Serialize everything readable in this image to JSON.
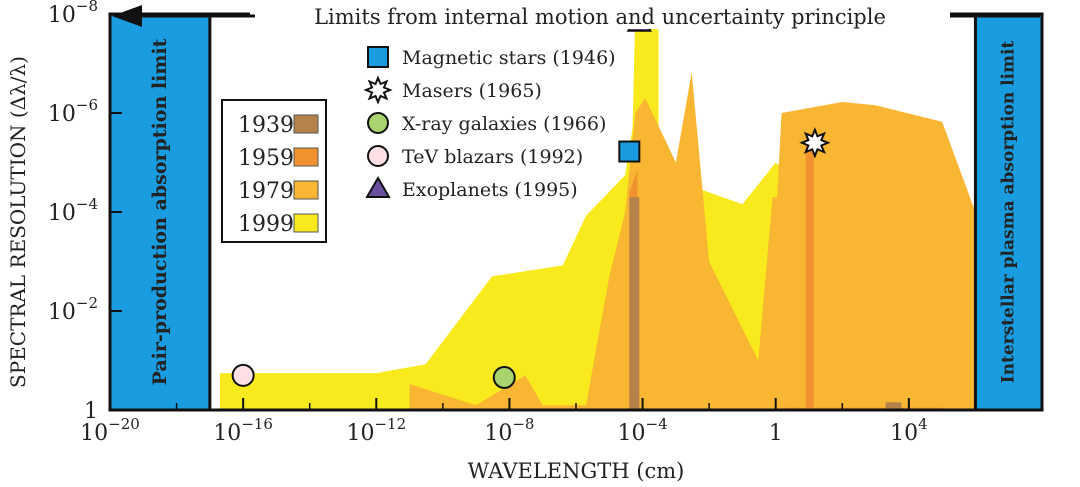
{
  "chart_data": {
    "type": "area",
    "title": "Limits from internal motion and uncertainty principle",
    "xlabel": "WAVELENGTH (cm)",
    "ylabel": "SPECTRAL RESOLUTION (Δλ/λ)",
    "x_scale": "log",
    "y_scale": "log",
    "xlim": [
      "1e-20",
      "1e8"
    ],
    "ylim": [
      "1",
      "1e-8"
    ],
    "x_ticks": [
      {
        "v": "1e-20",
        "base": "10",
        "exp": "−20"
      },
      {
        "v": "1e-16",
        "base": "10",
        "exp": "−16"
      },
      {
        "v": "1e-12",
        "base": "10",
        "exp": "−12"
      },
      {
        "v": "1e-8",
        "base": "10",
        "exp": "−8"
      },
      {
        "v": "1e-4",
        "base": "10",
        "exp": "−4"
      },
      {
        "v": "1",
        "base": "1",
        "exp": ""
      },
      {
        "v": "1e4",
        "base": "10",
        "exp": "4"
      }
    ],
    "y_ticks": [
      {
        "v": "1e-8",
        "base": "10",
        "exp": "−8"
      },
      {
        "v": "1e-6",
        "base": "10",
        "exp": "−6"
      },
      {
        "v": "1e-4",
        "base": "10",
        "exp": "−4"
      },
      {
        "v": "1e-2",
        "base": "10",
        "exp": "−2"
      },
      {
        "v": "1",
        "base": "1",
        "exp": ""
      }
    ],
    "bands": {
      "left": {
        "label": "Pair-production absorption limit",
        "x_max": "1e-17"
      },
      "right": {
        "label": "Interstellar plasma absorption limit",
        "x_min": "1e6"
      }
    },
    "legend_position": "left-middle",
    "series": [
      {
        "name": "1999",
        "color": "#f8ea1c",
        "points": [
          [
            "2e-17",
            "1"
          ],
          [
            "2e-17",
            "0.18"
          ],
          [
            "1e-12",
            "0.18"
          ],
          [
            "3e-11",
            "0.12"
          ],
          [
            "3e-9",
            "0.002"
          ],
          [
            "4e-7",
            "0.0012"
          ],
          [
            "2e-6",
            "1.2e-4"
          ],
          [
            "3e-5",
            "1.8e-5"
          ],
          [
            "5e-5",
            "2e-6"
          ],
          [
            "6e-5",
            "1e-8"
          ],
          [
            "3e-4",
            "1e-8"
          ],
          [
            "3e-4",
            "4e-6"
          ],
          [
            "3e-3",
            "3e-5"
          ],
          [
            "1e-1",
            "7e-5"
          ],
          [
            "1",
            "1e-5"
          ],
          [
            "1e8",
            "1"
          ]
        ]
      },
      {
        "name": "1979",
        "color": "#f9b632",
        "points": [
          [
            "1e-11",
            "1"
          ],
          [
            "1e-11",
            "0.3"
          ],
          [
            "1e-9",
            "0.8"
          ],
          [
            "3e-8",
            "0.2"
          ],
          [
            "1e-7",
            "0.8"
          ],
          [
            "2e-6",
            "0.8"
          ],
          [
            "1e-5",
            "0.002"
          ],
          [
            "3e-5",
            "1e-4"
          ],
          [
            "6e-5",
            "1e-6"
          ],
          [
            "1.2e-4",
            "5e-7"
          ],
          [
            "1e-3",
            "1e-5"
          ],
          [
            "3e-3",
            "1.5e-7"
          ],
          [
            "1e-2",
            "0.001"
          ],
          [
            "3e-1",
            "0.1"
          ],
          [
            "8e-1",
            "5e-5"
          ],
          [
            "1.1",
            "5e-5"
          ],
          [
            "1.5",
            "1e-6"
          ],
          [
            "1e2",
            "6e-7"
          ],
          [
            "1e3",
            "7e-7"
          ],
          [
            "1e5",
            "1.5e-6"
          ],
          [
            "1e6",
            "1e-4"
          ],
          [
            "1e6",
            "0.01"
          ],
          [
            "3e7",
            "0.9"
          ],
          [
            "3e7",
            "1"
          ]
        ]
      },
      {
        "name": "1959",
        "color": "#f0922e",
        "points": [
          [
            "4e-5",
            "1"
          ],
          [
            "4e-5",
            "4e-5"
          ],
          [
            "7e-5",
            "1.4e-5"
          ],
          [
            "8e-5",
            "1"
          ],
          [
            "8",
            "1"
          ],
          [
            "8",
            "3e-6"
          ],
          [
            "14",
            "3e-6"
          ],
          [
            "14",
            "1"
          ],
          [
            "2",
            "1"
          ],
          [
            "2",
            "0.9"
          ],
          [
            "1e5",
            "0.9"
          ],
          [
            "1e5",
            "1"
          ]
        ]
      },
      {
        "name": "1939",
        "color": "#b5834a",
        "points": [
          [
            "4e-5",
            "1"
          ],
          [
            "4e-5",
            "5e-5"
          ],
          [
            "8e-5",
            "5e-5"
          ],
          [
            "8e-5",
            "1"
          ],
          [
            "2e3",
            "1"
          ],
          [
            "2e3",
            "0.7"
          ],
          [
            "6e3",
            "0.7"
          ],
          [
            "6e3",
            "1"
          ]
        ]
      }
    ],
    "markers": [
      {
        "name": "Magnetic stars (1946)",
        "x": "4e-5",
        "y": "6e-6",
        "shape": "square",
        "color": "#1a9de0"
      },
      {
        "name": "Masers (1965)",
        "x": "15",
        "y": "4e-6",
        "shape": "star",
        "color": "#ffffff"
      },
      {
        "name": "X-ray galaxies (1966)",
        "x": "7e-9",
        "y": "0.22",
        "shape": "circle",
        "color": "#a8d36e"
      },
      {
        "name": "TeV blazars (1992)",
        "x": "1e-16",
        "y": "0.2",
        "shape": "circle",
        "color": "#fde0e6"
      },
      {
        "name": "Exoplanets (1995)",
        "x": "8e-5",
        "y": "1.5e-8",
        "shape": "triangle",
        "color": "#6a4fa0"
      }
    ]
  }
}
